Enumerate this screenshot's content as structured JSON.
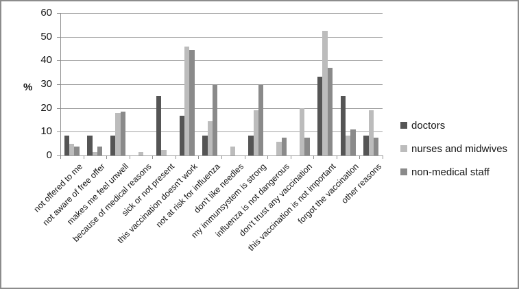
{
  "chart_data": {
    "type": "bar",
    "title": "",
    "xlabel": "",
    "ylabel": "%",
    "ylim": [
      0,
      60
    ],
    "yticks": [
      0,
      10,
      20,
      30,
      40,
      50,
      60
    ],
    "grid": true,
    "legend_position": "right",
    "categories": [
      "not offered to me",
      "not aware of free offer",
      "makes me feel unwell",
      "because of medical reasons",
      "sick or not present",
      "this vaccination doesn't work",
      "not at risk for influenza",
      "don't like needles",
      "my immunsystem is strong",
      "influenza is not dangerous",
      "don't trust any vaccination",
      "this vaccination is not important",
      "forgot the vaccination",
      "other reasons"
    ],
    "series": [
      {
        "name": "doctors",
        "color": "#555555",
        "values": [
          8.3,
          8.3,
          8.3,
          0,
          25,
          16.7,
          8.3,
          0,
          8.3,
          0,
          0,
          33.3,
          25,
          8.3
        ]
      },
      {
        "name": "nurses and midwives",
        "color": "#bcbcbc",
        "values": [
          4.8,
          1.5,
          18,
          1.5,
          2.3,
          46,
          14.4,
          3.8,
          19,
          5.9,
          20,
          52.4,
          8.3,
          19
        ]
      },
      {
        "name": "non-medical staff",
        "color": "#8a8a8a",
        "values": [
          3.7,
          3.7,
          18.5,
          0,
          0,
          44.4,
          29.6,
          0,
          29.6,
          7.4,
          7.4,
          37,
          11.1,
          7.4
        ]
      }
    ]
  },
  "colors": {
    "gridline": "#a0a0a0",
    "axis": "#8f8f8f",
    "text": "#161616",
    "frame_border": "#8c8c8c",
    "background": "#ffffff"
  }
}
